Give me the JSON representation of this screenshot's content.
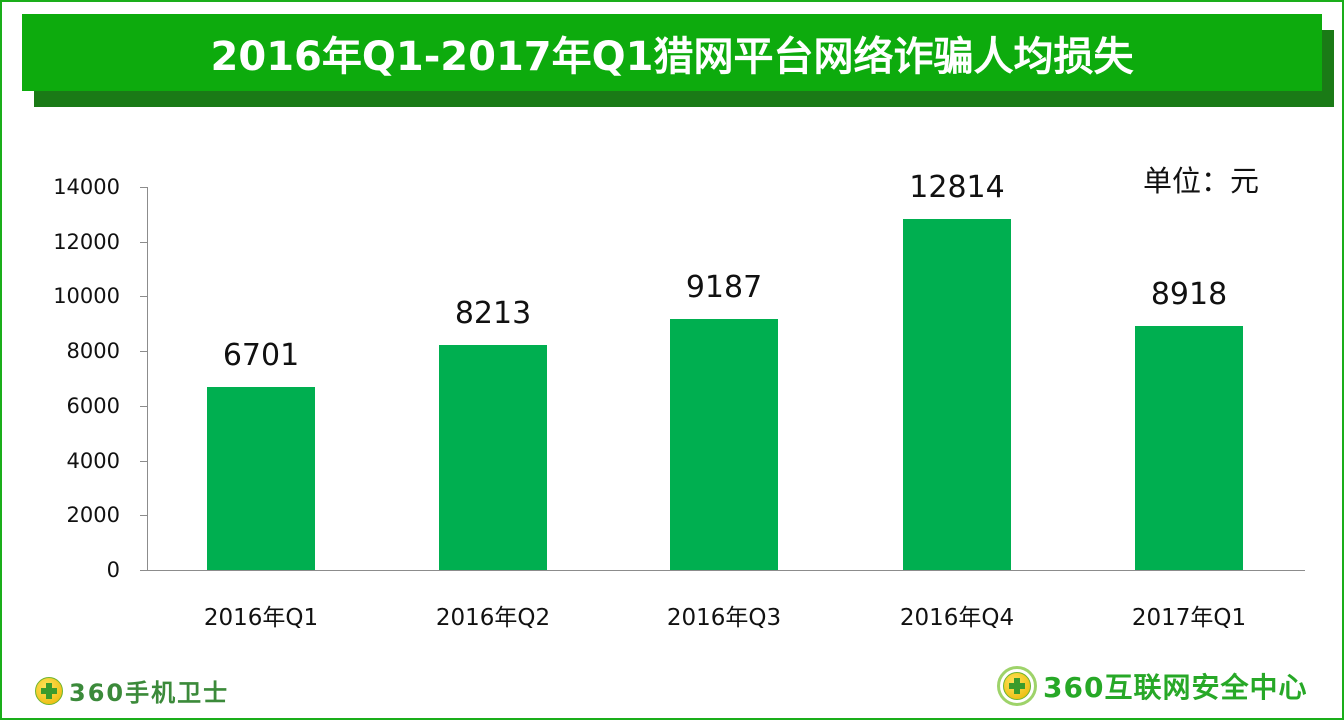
{
  "title": "2016年Q1-2017年Q1猎网平台网络诈骗人均损失",
  "unit_label": "单位：元",
  "colors": {
    "title_bg": "#0dab0d",
    "title_shadow": "#1a7a16",
    "bar": "#00af50",
    "frame": "#1aae1a"
  },
  "footer": {
    "left_logo_text": "360手机卫士",
    "right_logo_text": "360互联网安全中心"
  },
  "y_ticks": [
    "0",
    "2000",
    "4000",
    "6000",
    "8000",
    "10000",
    "12000",
    "14000"
  ],
  "bars": [
    {
      "category": "2016年Q1",
      "value_label": "6701"
    },
    {
      "category": "2016年Q2",
      "value_label": "8213"
    },
    {
      "category": "2016年Q3",
      "value_label": "9187"
    },
    {
      "category": "2016年Q4",
      "value_label": "12814"
    },
    {
      "category": "2017年Q1",
      "value_label": "8918"
    }
  ],
  "chart_data": {
    "type": "bar",
    "title": "2016年Q1-2017年Q1猎网平台网络诈骗人均损失",
    "categories": [
      "2016年Q1",
      "2016年Q2",
      "2016年Q3",
      "2016年Q4",
      "2017年Q1"
    ],
    "values": [
      6701,
      8213,
      9187,
      12814,
      8918
    ],
    "xlabel": "",
    "ylabel": "",
    "unit": "单位：元",
    "ylim": [
      0,
      14000
    ],
    "yticks": [
      0,
      2000,
      4000,
      6000,
      8000,
      10000,
      12000,
      14000
    ],
    "grid": false,
    "legend": "none",
    "data_labels": true
  }
}
